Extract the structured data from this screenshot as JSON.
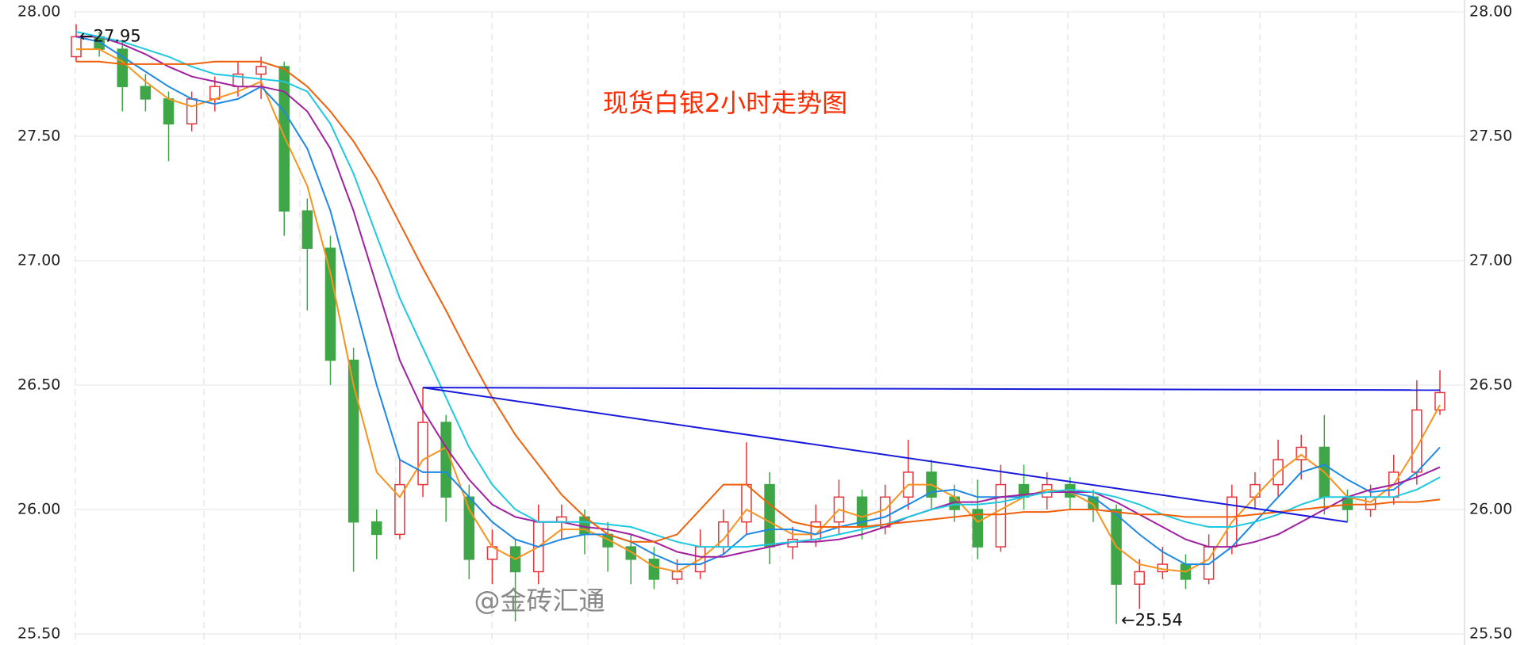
{
  "chart_data": {
    "type": "candlestick",
    "title": "现货白银2小时走势图",
    "watermark": "@金砖汇通",
    "annotations": [
      "←27.95",
      "←25.54"
    ],
    "up_color": "#e8333a",
    "down_color": "#3fa648",
    "grid": true,
    "ylim": [
      25.5,
      28.0
    ],
    "yticks": [
      {
        "value": 25.5,
        "label": "25.50"
      },
      {
        "value": 26,
        "label": "26.00"
      },
      {
        "value": 26.5,
        "label": "26.50"
      },
      {
        "value": 27,
        "label": "27.00"
      },
      {
        "value": 27.5,
        "label": "27.50"
      },
      {
        "value": 28,
        "label": "28.00"
      }
    ],
    "candles": [
      [
        27.82,
        27.95,
        27.8,
        27.9
      ],
      [
        27.9,
        27.92,
        27.82,
        27.85
      ],
      [
        27.85,
        27.88,
        27.6,
        27.7
      ],
      [
        27.7,
        27.75,
        27.6,
        27.65
      ],
      [
        27.65,
        27.68,
        27.4,
        27.55
      ],
      [
        27.55,
        27.68,
        27.52,
        27.65
      ],
      [
        27.65,
        27.74,
        27.6,
        27.7
      ],
      [
        27.7,
        27.8,
        27.66,
        27.75
      ],
      [
        27.75,
        27.82,
        27.65,
        27.78
      ],
      [
        27.78,
        27.8,
        27.1,
        27.2
      ],
      [
        27.2,
        27.25,
        26.8,
        27.05
      ],
      [
        27.05,
        27.1,
        26.5,
        26.6
      ],
      [
        26.6,
        26.65,
        25.75,
        25.95
      ],
      [
        25.95,
        26.0,
        25.8,
        25.9
      ],
      [
        25.9,
        26.2,
        25.88,
        26.1
      ],
      [
        26.1,
        26.49,
        26.05,
        26.35
      ],
      [
        26.35,
        26.38,
        25.95,
        26.05
      ],
      [
        26.05,
        26.1,
        25.72,
        25.8
      ],
      [
        25.8,
        25.92,
        25.7,
        25.85
      ],
      [
        25.85,
        25.88,
        25.55,
        25.75
      ],
      [
        25.75,
        26.02,
        25.7,
        25.95
      ],
      [
        25.95,
        26.02,
        25.88,
        25.97
      ],
      [
        25.97,
        26.0,
        25.82,
        25.9
      ],
      [
        25.9,
        25.95,
        25.75,
        25.85
      ],
      [
        25.85,
        25.9,
        25.7,
        25.8
      ],
      [
        25.8,
        25.85,
        25.68,
        25.72
      ],
      [
        25.72,
        25.8,
        25.7,
        25.75
      ],
      [
        25.75,
        25.92,
        25.72,
        25.85
      ],
      [
        25.85,
        26.0,
        25.82,
        25.95
      ],
      [
        25.95,
        26.27,
        25.9,
        26.1
      ],
      [
        26.1,
        26.15,
        25.78,
        25.85
      ],
      [
        25.85,
        25.93,
        25.8,
        25.88
      ],
      [
        25.88,
        26.02,
        25.85,
        25.95
      ],
      [
        25.95,
        26.12,
        25.9,
        26.05
      ],
      [
        26.05,
        26.08,
        25.88,
        25.93
      ],
      [
        25.93,
        26.1,
        25.9,
        26.05
      ],
      [
        26.05,
        26.28,
        26.0,
        26.15
      ],
      [
        26.15,
        26.2,
        26.0,
        26.05
      ],
      [
        26.05,
        26.1,
        25.95,
        26.0
      ],
      [
        26.0,
        26.12,
        25.8,
        25.85
      ],
      [
        25.85,
        26.18,
        25.83,
        26.1
      ],
      [
        26.1,
        26.18,
        26.0,
        26.05
      ],
      [
        26.05,
        26.15,
        26.0,
        26.1
      ],
      [
        26.1,
        26.13,
        26.0,
        26.05
      ],
      [
        26.05,
        26.08,
        25.95,
        26.0
      ],
      [
        26.0,
        26.02,
        25.54,
        25.7
      ],
      [
        25.7,
        25.8,
        25.6,
        25.75
      ],
      [
        25.75,
        25.85,
        25.72,
        25.78
      ],
      [
        25.78,
        25.82,
        25.68,
        25.72
      ],
      [
        25.72,
        25.9,
        25.7,
        25.85
      ],
      [
        25.85,
        26.1,
        25.82,
        26.05
      ],
      [
        26.05,
        26.15,
        26.0,
        26.1
      ],
      [
        26.1,
        26.28,
        26.05,
        26.2
      ],
      [
        26.2,
        26.3,
        26.12,
        26.25
      ],
      [
        26.25,
        26.38,
        25.98,
        26.05
      ],
      [
        26.05,
        26.08,
        25.95,
        26.0
      ],
      [
        26.0,
        26.1,
        25.97,
        26.05
      ],
      [
        26.05,
        26.22,
        26.02,
        26.15
      ],
      [
        26.15,
        26.52,
        26.1,
        26.4
      ],
      [
        26.4,
        26.56,
        26.38,
        26.47
      ]
    ],
    "series": [
      {
        "color": "#f7931e",
        "values": [
          27.85,
          27.85,
          27.8,
          27.72,
          27.65,
          27.62,
          27.65,
          27.68,
          27.72,
          27.5,
          27.3,
          26.95,
          26.5,
          26.15,
          26.05,
          26.2,
          26.25,
          26.0,
          25.85,
          25.8,
          25.85,
          25.92,
          25.92,
          25.88,
          25.83,
          25.77,
          25.75,
          25.8,
          25.88,
          26.0,
          25.95,
          25.9,
          25.9,
          26.0,
          25.97,
          26.0,
          26.1,
          26.1,
          26.05,
          25.95,
          26.0,
          26.05,
          26.08,
          26.07,
          26.02,
          25.85,
          25.78,
          25.76,
          25.75,
          25.8,
          25.95,
          26.05,
          26.15,
          26.22,
          26.15,
          26.05,
          26.03,
          26.1,
          26.25,
          26.42
        ]
      },
      {
        "color": "#1e88e5",
        "values": [
          27.9,
          27.88,
          27.82,
          27.76,
          27.7,
          27.65,
          27.63,
          27.65,
          27.7,
          27.6,
          27.45,
          27.2,
          26.85,
          26.5,
          26.2,
          26.15,
          26.15,
          26.05,
          25.95,
          25.88,
          25.85,
          25.88,
          25.9,
          25.9,
          25.87,
          25.82,
          25.78,
          25.78,
          25.82,
          25.9,
          25.92,
          25.92,
          25.9,
          25.93,
          25.95,
          25.97,
          26.02,
          26.07,
          26.08,
          26.05,
          26.05,
          26.05,
          26.07,
          26.07,
          26.05,
          25.98,
          25.9,
          25.83,
          25.78,
          25.78,
          25.85,
          25.95,
          26.05,
          26.15,
          26.18,
          26.12,
          26.07,
          26.08,
          26.15,
          26.25
        ]
      },
      {
        "color": "#a020a0",
        "values": [
          27.9,
          27.9,
          27.87,
          27.83,
          27.78,
          27.74,
          27.72,
          27.7,
          27.7,
          27.68,
          27.6,
          27.45,
          27.2,
          26.9,
          26.6,
          26.4,
          26.25,
          26.12,
          26.02,
          25.97,
          25.95,
          25.95,
          25.93,
          25.92,
          25.9,
          25.87,
          25.83,
          25.81,
          25.81,
          25.83,
          25.85,
          25.87,
          25.87,
          25.88,
          25.9,
          25.93,
          25.97,
          26.0,
          26.03,
          26.03,
          26.05,
          26.06,
          26.07,
          26.07,
          26.07,
          26.03,
          25.98,
          25.93,
          25.88,
          25.85,
          25.85,
          25.87,
          25.9,
          25.95,
          26.0,
          26.05,
          26.08,
          26.1,
          26.13,
          26.17
        ]
      },
      {
        "color": "#1ec8e0",
        "values": [
          27.92,
          27.9,
          27.88,
          27.85,
          27.82,
          27.78,
          27.75,
          27.74,
          27.73,
          27.72,
          27.68,
          27.55,
          27.35,
          27.1,
          26.85,
          26.65,
          26.45,
          26.25,
          26.1,
          26.0,
          25.95,
          25.95,
          25.95,
          25.94,
          25.93,
          25.9,
          25.87,
          25.85,
          25.85,
          25.85,
          25.86,
          25.87,
          25.88,
          25.9,
          25.92,
          25.94,
          25.97,
          26.0,
          26.02,
          26.02,
          26.03,
          26.05,
          26.07,
          26.08,
          26.07,
          26.05,
          26.02,
          25.98,
          25.95,
          25.93,
          25.93,
          25.95,
          25.98,
          26.02,
          26.05,
          26.05,
          26.05,
          26.05,
          26.08,
          26.13
        ]
      },
      {
        "color": "#f0600a",
        "values": [
          27.8,
          27.8,
          27.79,
          27.79,
          27.79,
          27.79,
          27.8,
          27.8,
          27.8,
          27.77,
          27.7,
          27.6,
          27.48,
          27.33,
          27.15,
          26.97,
          26.8,
          26.62,
          26.45,
          26.3,
          26.18,
          26.06,
          25.97,
          25.9,
          25.87,
          25.87,
          25.9,
          26.0,
          26.1,
          26.1,
          26.02,
          25.95,
          25.93,
          25.93,
          25.93,
          25.94,
          25.95,
          25.96,
          25.97,
          25.98,
          25.98,
          25.99,
          25.99,
          26.0,
          26.0,
          25.99,
          25.98,
          25.98,
          25.97,
          25.97,
          25.97,
          25.98,
          25.99,
          26.0,
          26.01,
          26.02,
          26.02,
          26.03,
          26.03,
          26.04
        ]
      }
    ],
    "trendline_color": "#1a1adb",
    "trendlines": [
      {
        "x": [
          15,
          59
        ],
        "y": [
          26.49,
          26.48
        ]
      },
      {
        "x": [
          15,
          55
        ],
        "y": [
          26.49,
          25.95
        ]
      }
    ]
  }
}
